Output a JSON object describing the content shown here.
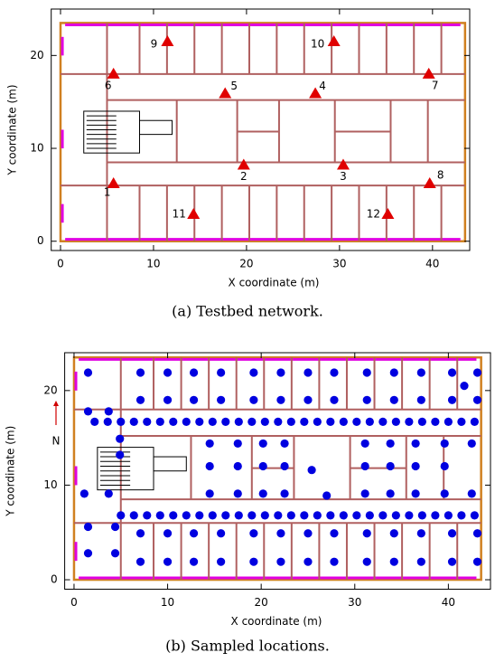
{
  "chart_data": [
    {
      "type": "scatter",
      "caption": "(a) Testbed network.",
      "xlabel": "X coordinate (m)",
      "ylabel": "Y coordinate (m)",
      "xlim": [
        -1,
        44
      ],
      "ylim": [
        -1,
        25
      ],
      "xticks": [
        0,
        10,
        20,
        30,
        40
      ],
      "yticks": [
        0,
        10,
        20
      ],
      "marker": "triangle",
      "color": "#e00000",
      "x": [
        5.7,
        19.7,
        30.4,
        27.4,
        17.7,
        5.7,
        39.6,
        39.7,
        11.5,
        29.4,
        14.3,
        35.2
      ],
      "y": [
        6.2,
        8.2,
        8.2,
        15.9,
        15.9,
        18.0,
        18.0,
        6.2,
        21.5,
        21.5,
        2.9,
        2.9
      ],
      "point_labels": [
        "1",
        "2",
        "3",
        "4",
        "5",
        "6",
        "7",
        "8",
        "9",
        "10",
        "11",
        "12"
      ]
    },
    {
      "type": "scatter",
      "caption": "(b) Sampled locations.",
      "xlabel": "X coordinate (m)",
      "ylabel": "Y coordinate (m)",
      "xlim": [
        -1,
        44.5
      ],
      "ylim": [
        -1,
        24
      ],
      "xticks": [
        0,
        10,
        20,
        30,
        40
      ],
      "yticks": [
        0,
        10,
        20
      ],
      "marker": "circle",
      "color": "#0000e0",
      "annotations": [
        "N"
      ],
      "x": [
        7.1,
        10.0,
        12.8,
        15.7,
        19.2,
        22.1,
        25.0,
        27.8,
        31.3,
        34.2,
        37.1,
        7.1,
        10.0,
        12.8,
        15.7,
        19.2,
        22.1,
        25.0,
        27.8,
        31.3,
        34.2,
        37.1,
        40.4,
        43.1,
        41.7,
        40.4,
        43.1,
        1.5,
        1.5,
        3.7,
        2.2,
        3.6,
        5.0,
        6.4,
        7.8,
        9.2,
        10.6,
        12.0,
        13.4,
        14.8,
        16.2,
        17.6,
        19.0,
        20.4,
        21.8,
        23.2,
        24.6,
        26.0,
        27.4,
        28.8,
        30.2,
        31.6,
        33.0,
        34.4,
        35.8,
        37.2,
        38.6,
        40.0,
        41.4,
        42.8,
        5.0,
        6.4,
        7.8,
        9.2,
        10.6,
        12.0,
        13.4,
        14.8,
        16.2,
        17.6,
        19.0,
        20.4,
        21.8,
        23.2,
        24.6,
        26.0,
        27.4,
        28.8,
        30.2,
        31.6,
        33.0,
        34.4,
        35.8,
        37.2,
        38.6,
        40.0,
        41.4,
        42.8,
        4.9,
        4.9,
        14.5,
        17.5,
        20.2,
        22.5,
        14.5,
        17.5,
        20.2,
        22.5,
        14.5,
        17.5,
        20.2,
        22.5,
        25.4,
        27.0,
        31.1,
        33.8,
        31.1,
        33.8,
        31.1,
        33.8,
        36.5,
        39.6,
        36.5,
        39.6,
        36.5,
        39.6,
        42.5,
        42.5,
        7.1,
        10.0,
        12.8,
        15.7,
        19.2,
        22.1,
        25.0,
        27.8,
        31.3,
        34.2,
        37.1,
        40.4,
        43.1,
        7.1,
        10.0,
        12.8,
        15.7,
        19.2,
        22.1,
        25.0,
        27.8,
        31.3,
        34.2,
        37.1,
        40.4,
        43.1,
        1.5,
        4.4,
        1.5,
        4.4,
        1.1,
        3.7
      ],
      "y": [
        21.9,
        21.9,
        21.9,
        21.9,
        21.9,
        21.9,
        21.9,
        21.9,
        21.9,
        21.9,
        21.9,
        19.0,
        19.0,
        19.0,
        19.0,
        19.0,
        19.0,
        19.0,
        19.0,
        19.0,
        19.0,
        19.0,
        21.9,
        21.9,
        20.5,
        19.0,
        19.0,
        21.9,
        17.8,
        17.8,
        16.7,
        16.7,
        16.7,
        16.7,
        16.7,
        16.7,
        16.7,
        16.7,
        16.7,
        16.7,
        16.7,
        16.7,
        16.7,
        16.7,
        16.7,
        16.7,
        16.7,
        16.7,
        16.7,
        16.7,
        16.7,
        16.7,
        16.7,
        16.7,
        16.7,
        16.7,
        16.7,
        16.7,
        16.7,
        16.7,
        6.8,
        6.8,
        6.8,
        6.8,
        6.8,
        6.8,
        6.8,
        6.8,
        6.8,
        6.8,
        6.8,
        6.8,
        6.8,
        6.8,
        6.8,
        6.8,
        6.8,
        6.8,
        6.8,
        6.8,
        6.8,
        6.8,
        6.8,
        6.8,
        6.8,
        6.8,
        6.8,
        6.8,
        14.9,
        13.2,
        14.4,
        14.4,
        14.4,
        14.4,
        12.0,
        12.0,
        12.0,
        12.0,
        9.1,
        9.1,
        9.1,
        9.1,
        11.6,
        8.9,
        14.4,
        14.4,
        12.0,
        12.0,
        9.1,
        9.1,
        14.4,
        14.4,
        12.0,
        12.0,
        9.1,
        9.1,
        14.4,
        9.1,
        4.9,
        4.9,
        4.9,
        4.9,
        4.9,
        4.9,
        4.9,
        4.9,
        4.9,
        4.9,
        4.9,
        4.9,
        4.9,
        1.9,
        1.9,
        1.9,
        1.9,
        1.9,
        1.9,
        1.9,
        1.9,
        1.9,
        1.9,
        1.9,
        1.9,
        1.9,
        5.6,
        5.6,
        2.8,
        2.8,
        9.1,
        9.1
      ]
    }
  ]
}
